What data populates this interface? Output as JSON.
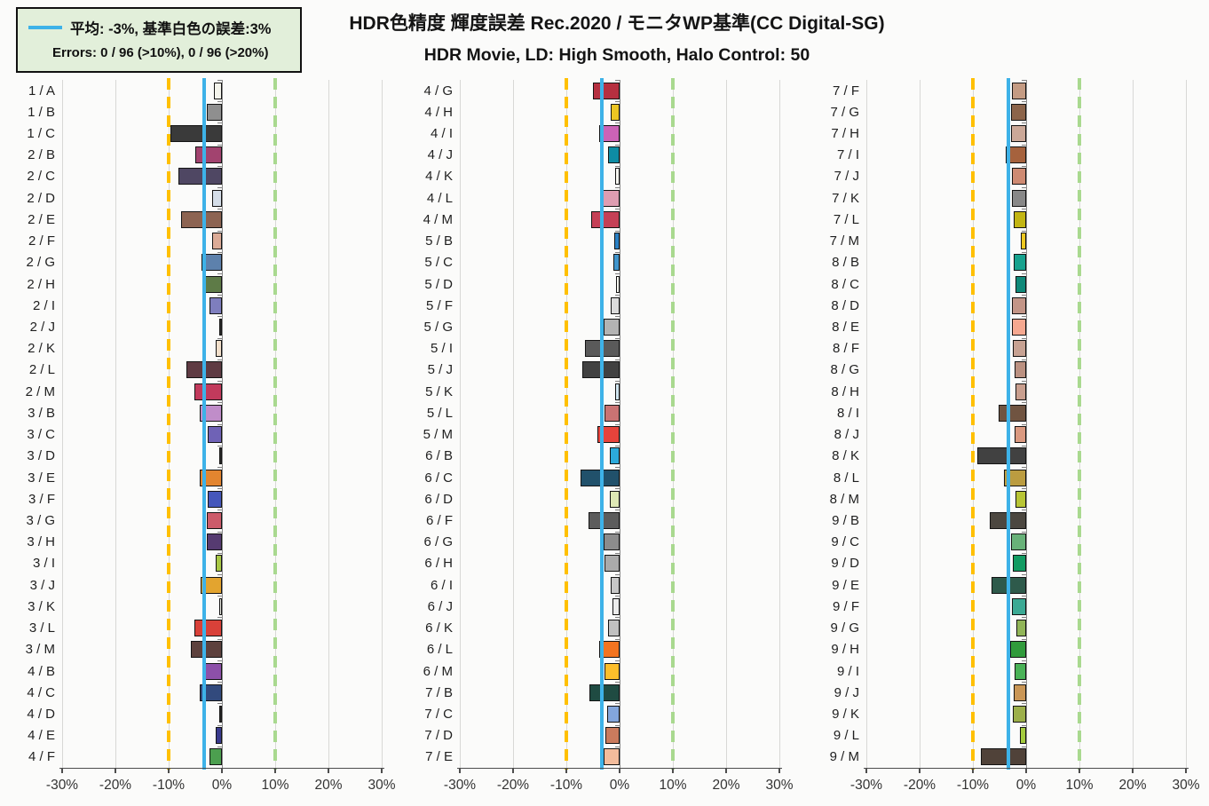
{
  "title": "HDR色精度 輝度誤差 Rec.2020 / モニタWP基準(CC Digital-SG)",
  "subtitle": "HDR Movie, LD: High Smooth, Halo Control: 50",
  "legend": {
    "average_label": "平均: -3%, 基準白色の誤差:3%",
    "errors_label": "Errors: 0 / 96 (>10%),  0 / 96 (>20%)",
    "average_line_color": "#3db2e8",
    "box_background": "#e2efda"
  },
  "chart_data": {
    "type": "bar",
    "orientation": "horizontal",
    "unit": "%",
    "xlim": [
      -30,
      30
    ],
    "x_ticks": [
      "-30%",
      "-20%",
      "-10%",
      "0%",
      "10%",
      "20%",
      "30%"
    ],
    "x_tick_values": [
      -30,
      -20,
      -10,
      0,
      10,
      20,
      30
    ],
    "grid": true,
    "average_line_value": -3.3,
    "threshold_low": -10,
    "threshold_high": 10,
    "threshold_low_color": "#ffc000",
    "threshold_high_color": "#a9d98f",
    "average_line_color": "#3db2e8",
    "panels": [
      {
        "rows": [
          {
            "label": "1 / A",
            "value": -1.5,
            "color": "#f4f4ec"
          },
          {
            "label": "1 / B",
            "value": -2.9,
            "color": "#8f8f8f"
          },
          {
            "label": "1 / C",
            "value": -9.6,
            "color": "#3a3a3a"
          },
          {
            "label": "2 / B",
            "value": -5.0,
            "color": "#a2436f"
          },
          {
            "label": "2 / C",
            "value": -8.2,
            "color": "#4f4763"
          },
          {
            "label": "2 / D",
            "value": -1.9,
            "color": "#d5dee9"
          },
          {
            "label": "2 / E",
            "value": -7.6,
            "color": "#8d6452"
          },
          {
            "label": "2 / F",
            "value": -1.9,
            "color": "#dcab97"
          },
          {
            "label": "2 / G",
            "value": -3.8,
            "color": "#5d81ac"
          },
          {
            "label": "2 / H",
            "value": -3.6,
            "color": "#5e7b47"
          },
          {
            "label": "2 / I",
            "value": -2.3,
            "color": "#7e7ebe"
          },
          {
            "label": "2 / J",
            "value": -0.4,
            "color": "#2b2b2b"
          },
          {
            "label": "2 / K",
            "value": -1.1,
            "color": "#f3e0cb"
          },
          {
            "label": "2 / L",
            "value": -6.6,
            "color": "#5f3b43"
          },
          {
            "label": "2 / M",
            "value": -5.2,
            "color": "#c23a5c"
          },
          {
            "label": "3 / B",
            "value": -4.2,
            "color": "#c08dc9"
          },
          {
            "label": "3 / C",
            "value": -2.6,
            "color": "#6f62b6"
          },
          {
            "label": "3 / D",
            "value": -0.4,
            "color": "#2b2b2b"
          },
          {
            "label": "3 / E",
            "value": -4.2,
            "color": "#e3852f"
          },
          {
            "label": "3 / F",
            "value": -2.7,
            "color": "#4557bb"
          },
          {
            "label": "3 / G",
            "value": -2.9,
            "color": "#cd5b6a"
          },
          {
            "label": "3 / H",
            "value": -2.9,
            "color": "#563b71"
          },
          {
            "label": "3 / I",
            "value": -1.1,
            "color": "#a9c946"
          },
          {
            "label": "3 / J",
            "value": -4.0,
            "color": "#e3a42f"
          },
          {
            "label": "3 / K",
            "value": -0.5,
            "color": "#eeeee6"
          },
          {
            "label": "3 / L",
            "value": -5.2,
            "color": "#d94139"
          },
          {
            "label": "3 / M",
            "value": -5.9,
            "color": "#5d413d"
          },
          {
            "label": "4 / B",
            "value": -3.6,
            "color": "#8d50a9"
          },
          {
            "label": "4 / C",
            "value": -4.1,
            "color": "#324a7d"
          },
          {
            "label": "4 / D",
            "value": -0.4,
            "color": "#262626"
          },
          {
            "label": "4 / E",
            "value": -1.2,
            "color": "#393a8d"
          },
          {
            "label": "4 / F",
            "value": -2.3,
            "color": "#4c9f4f"
          }
        ]
      },
      {
        "rows": [
          {
            "label": "4 / G",
            "value": -5.0,
            "color": "#b63040"
          },
          {
            "label": "4 / H",
            "value": -1.7,
            "color": "#ecc522"
          },
          {
            "label": "4 / I",
            "value": -3.9,
            "color": "#cb63b6"
          },
          {
            "label": "4 / J",
            "value": -2.2,
            "color": "#0e8ca4"
          },
          {
            "label": "4 / K",
            "value": -0.8,
            "color": "#f7f7f1"
          },
          {
            "label": "4 / L",
            "value": -3.5,
            "color": "#de9db1"
          },
          {
            "label": "4 / M",
            "value": -5.4,
            "color": "#c54056"
          },
          {
            "label": "5 / B",
            "value": -1.0,
            "color": "#2a80c4"
          },
          {
            "label": "5 / C",
            "value": -1.1,
            "color": "#4095cc"
          },
          {
            "label": "5 / D",
            "value": -0.7,
            "color": "#f5f5ef"
          },
          {
            "label": "5 / F",
            "value": -1.7,
            "color": "#dbdbdb"
          },
          {
            "label": "5 / G",
            "value": -3.0,
            "color": "#b3b3b3"
          },
          {
            "label": "5 / I",
            "value": -6.5,
            "color": "#5a5a5a"
          },
          {
            "label": "5 / J",
            "value": -7.0,
            "color": "#414141"
          },
          {
            "label": "5 / K",
            "value": -0.9,
            "color": "#d0e5f0"
          },
          {
            "label": "5 / L",
            "value": -2.8,
            "color": "#ca7373"
          },
          {
            "label": "5 / M",
            "value": -4.2,
            "color": "#e7433b"
          },
          {
            "label": "6 / B",
            "value": -1.9,
            "color": "#2caadb"
          },
          {
            "label": "6 / C",
            "value": -7.4,
            "color": "#21516b"
          },
          {
            "label": "6 / D",
            "value": -1.9,
            "color": "#dee8b5"
          },
          {
            "label": "6 / F",
            "value": -5.9,
            "color": "#5c5c5c"
          },
          {
            "label": "6 / G",
            "value": -3.0,
            "color": "#8c8c8c"
          },
          {
            "label": "6 / H",
            "value": -2.8,
            "color": "#aaaaaa"
          },
          {
            "label": "6 / I",
            "value": -1.7,
            "color": "#c7c7c7"
          },
          {
            "label": "6 / J",
            "value": -1.4,
            "color": "#ececec"
          },
          {
            "label": "6 / K",
            "value": -2.2,
            "color": "#c0c0c0"
          },
          {
            "label": "6 / L",
            "value": -3.9,
            "color": "#f37420"
          },
          {
            "label": "6 / M",
            "value": -2.8,
            "color": "#fdbe2b"
          },
          {
            "label": "7 / B",
            "value": -5.6,
            "color": "#1f4b42"
          },
          {
            "label": "7 / C",
            "value": -2.3,
            "color": "#83a6db"
          },
          {
            "label": "7 / D",
            "value": -2.7,
            "color": "#ca7b5d"
          },
          {
            "label": "7 / E",
            "value": -3.0,
            "color": "#f3bc9c"
          }
        ]
      },
      {
        "rows": [
          {
            "label": "7 / F",
            "value": -2.7,
            "color": "#c49b83"
          },
          {
            "label": "7 / G",
            "value": -2.9,
            "color": "#8c644a"
          },
          {
            "label": "7 / H",
            "value": -2.8,
            "color": "#cba898"
          },
          {
            "label": "7 / I",
            "value": -3.8,
            "color": "#a6623d"
          },
          {
            "label": "7 / J",
            "value": -2.7,
            "color": "#ce8a72"
          },
          {
            "label": "7 / K",
            "value": -2.7,
            "color": "#888888"
          },
          {
            "label": "7 / L",
            "value": -2.4,
            "color": "#c2b513"
          },
          {
            "label": "7 / M",
            "value": -1.0,
            "color": "#eec81f"
          },
          {
            "label": "8 / B",
            "value": -2.3,
            "color": "#17a28e"
          },
          {
            "label": "8 / C",
            "value": -2.0,
            "color": "#0f8979"
          },
          {
            "label": "8 / D",
            "value": -2.6,
            "color": "#c39587"
          },
          {
            "label": "8 / E",
            "value": -2.7,
            "color": "#f5a890"
          },
          {
            "label": "8 / F",
            "value": -2.5,
            "color": "#c7a293"
          },
          {
            "label": "8 / G",
            "value": -2.1,
            "color": "#bb9181"
          },
          {
            "label": "8 / H",
            "value": -2.0,
            "color": "#c99f8f"
          },
          {
            "label": "8 / I",
            "value": -5.2,
            "color": "#705441"
          },
          {
            "label": "8 / J",
            "value": -2.2,
            "color": "#da9980"
          },
          {
            "label": "8 / K",
            "value": -9.2,
            "color": "#414141"
          },
          {
            "label": "8 / L",
            "value": -4.2,
            "color": "#bb9c40"
          },
          {
            "label": "8 / M",
            "value": -2.0,
            "color": "#b8c535"
          },
          {
            "label": "9 / B",
            "value": -6.9,
            "color": "#4c4740"
          },
          {
            "label": "9 / C",
            "value": -2.9,
            "color": "#68b279"
          },
          {
            "label": "9 / D",
            "value": -2.5,
            "color": "#119b62"
          },
          {
            "label": "9 / E",
            "value": -6.5,
            "color": "#2e5a4b"
          },
          {
            "label": "9 / F",
            "value": -2.7,
            "color": "#3ba994"
          },
          {
            "label": "9 / G",
            "value": -1.9,
            "color": "#91b558"
          },
          {
            "label": "9 / H",
            "value": -3.0,
            "color": "#319b3c"
          },
          {
            "label": "9 / I",
            "value": -2.1,
            "color": "#49b257"
          },
          {
            "label": "9 / J",
            "value": -2.3,
            "color": "#c99656"
          },
          {
            "label": "9 / K",
            "value": -2.5,
            "color": "#9caf4a"
          },
          {
            "label": "9 / L",
            "value": -1.1,
            "color": "#a4cb3e"
          },
          {
            "label": "9 / M",
            "value": -8.5,
            "color": "#504239"
          }
        ]
      }
    ]
  }
}
